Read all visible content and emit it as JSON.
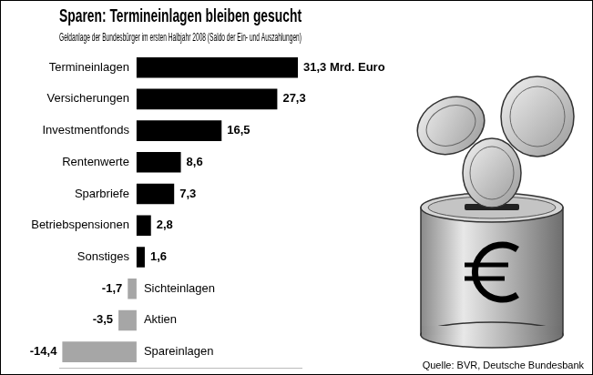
{
  "chart_data": {
    "type": "bar",
    "title": "Sparen: Termineinlagen bleiben gesucht",
    "subtitle": "Geldanlage der Bundesbürger im ersten Halbjahr 2008 (Saldo der Ein- und Auszahlungen)",
    "orientation": "horizontal",
    "categories": [
      "Termineinlagen",
      "Versicherungen",
      "Investmentfonds",
      "Rentenwerte",
      "Sparbriefe",
      "Betriebspensionen",
      "Sonstiges",
      "Sichteinlagen",
      "Aktien",
      "Spareinlagen"
    ],
    "values": [
      31.3,
      27.3,
      16.5,
      8.6,
      7.3,
      2.8,
      1.6,
      -1.7,
      -3.5,
      -14.4
    ],
    "value_labels": [
      "31,3 Mrd. Euro",
      "27,3",
      "16,5",
      "8,6",
      "7,3",
      "2,8",
      "1,6",
      "-1,7",
      "-3,5",
      "-14,4"
    ],
    "data_labels": true,
    "colors": [
      "#000000",
      "#000000",
      "#000000",
      "#000000",
      "#000000",
      "#000000",
      "#000000",
      "#a6a6a6",
      "#a6a6a6",
      "#a6a6a6"
    ],
    "xlim": [
      -15,
      32
    ],
    "tick_labels": false,
    "grid": false,
    "source": "Quelle: BVR, Deutsche Bundesbank"
  }
}
